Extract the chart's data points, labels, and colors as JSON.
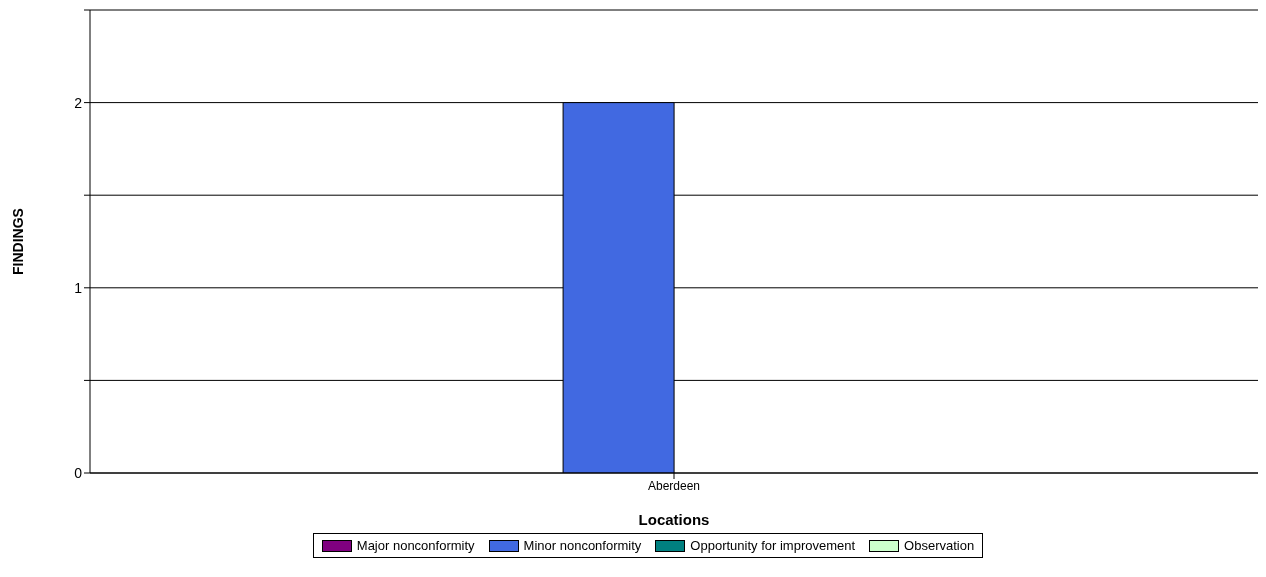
{
  "chart_data": {
    "type": "bar",
    "xlabel": "Locations",
    "ylabel": "FINDINGS",
    "categories": [
      "Aberdeen"
    ],
    "series": [
      {
        "name": "Major nonconformity",
        "color": "#800080",
        "values": [
          0
        ]
      },
      {
        "name": "Minor nonconformity",
        "color": "#4169e1",
        "values": [
          2
        ]
      },
      {
        "name": "Opportunity for improvement",
        "color": "#008080",
        "values": [
          0
        ]
      },
      {
        "name": "Observation",
        "color": "#ccffcc",
        "values": [
          0
        ]
      }
    ],
    "ylim": [
      0,
      2.5
    ],
    "yticks": [
      0,
      {
        "value": 0.5,
        "label": null
      },
      1,
      {
        "value": 1.5,
        "label": null
      },
      2,
      {
        "value": 2.5,
        "label": null
      }
    ],
    "grid": "y",
    "legend": "bottom"
  }
}
